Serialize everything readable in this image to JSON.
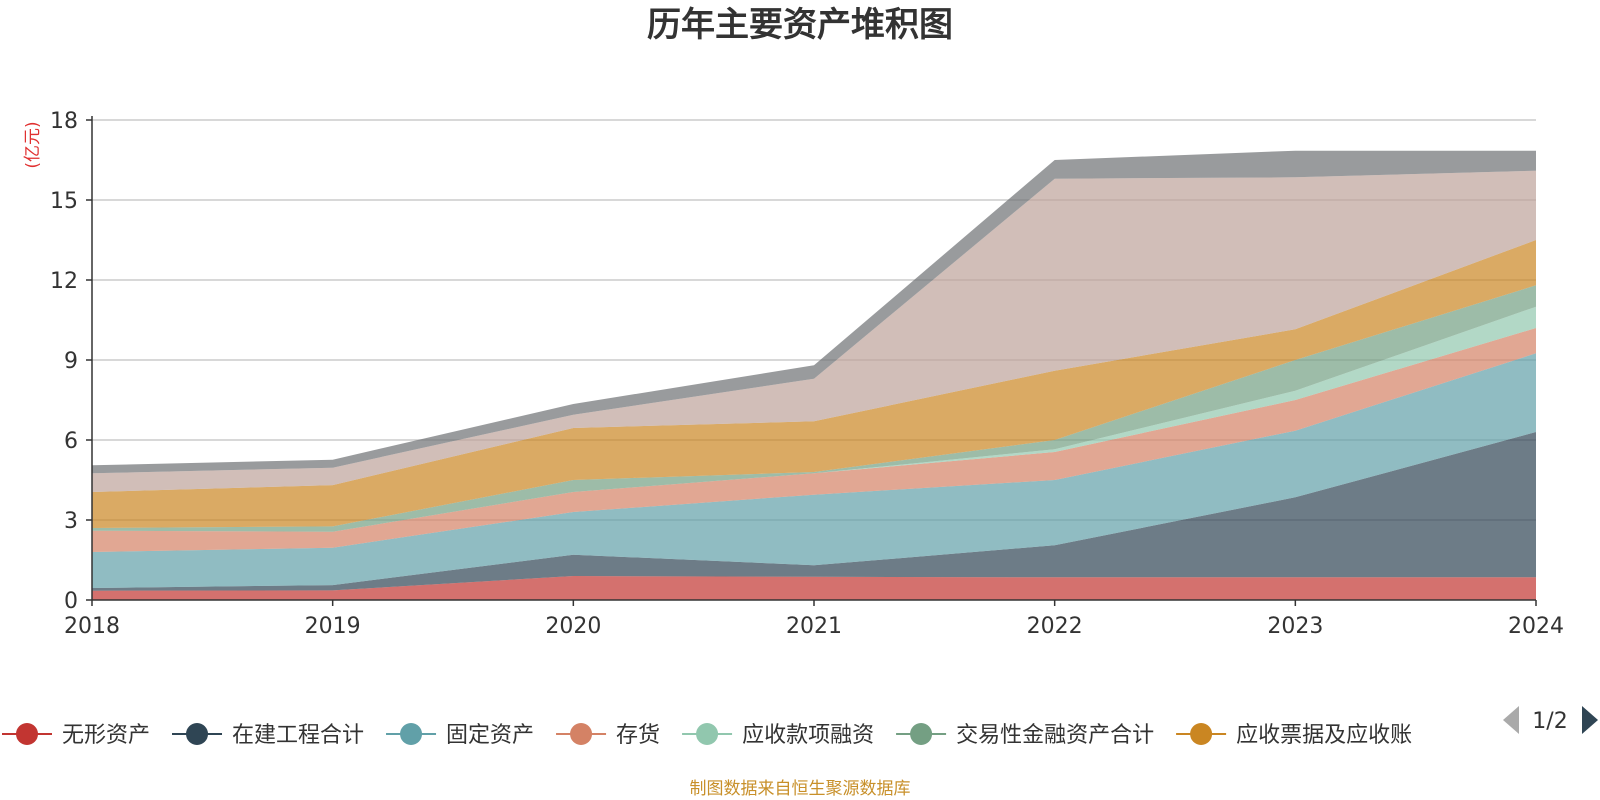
{
  "chart_data": {
    "type": "area",
    "stacked": true,
    "title": "历年主要资产堆积图",
    "unit_label": "(亿元)",
    "x": [
      "2018",
      "2019",
      "2020",
      "2021",
      "2022",
      "2023",
      "2024"
    ],
    "ylim": [
      0,
      18
    ],
    "yticks": [
      0,
      3,
      6,
      9,
      12,
      15,
      18
    ],
    "grid": true,
    "legend_position": "bottom",
    "series": [
      {
        "name": "无形资产",
        "color": "#c23531",
        "values": [
          0.35,
          0.36,
          0.9,
          0.87,
          0.85,
          0.85,
          0.85
        ]
      },
      {
        "name": "在建工程合计",
        "color": "#2f4554",
        "values": [
          0.1,
          0.2,
          0.8,
          0.43,
          1.2,
          3.0,
          5.45
        ]
      },
      {
        "name": "固定资产",
        "color": "#61a0a8",
        "values": [
          1.35,
          1.4,
          1.6,
          2.65,
          2.45,
          2.5,
          2.95
        ]
      },
      {
        "name": "存货",
        "color": "#d48265",
        "values": [
          0.8,
          0.6,
          0.75,
          0.8,
          1.05,
          1.15,
          0.95
        ]
      },
      {
        "name": "应收款项融资",
        "color": "#91c7ae",
        "values": [
          0.0,
          0.0,
          0.0,
          0.0,
          0.1,
          0.35,
          0.8
        ]
      },
      {
        "name": "交易性金融资产合计",
        "color": "#749f83",
        "values": [
          0.1,
          0.2,
          0.45,
          0.05,
          0.35,
          1.15,
          0.8
        ]
      },
      {
        "name": "应收票据及应收账",
        "color": "#ca8622",
        "values": [
          1.35,
          1.55,
          1.95,
          1.9,
          2.6,
          1.15,
          1.7
        ]
      },
      {
        "name": "",
        "color": "#bda29a",
        "values": [
          0.7,
          0.65,
          0.5,
          1.6,
          7.2,
          5.7,
          2.6
        ]
      },
      {
        "name": "",
        "color": "#6e7074",
        "values": [
          0.3,
          0.3,
          0.4,
          0.5,
          0.7,
          1.0,
          0.75
        ]
      }
    ]
  },
  "legend": {
    "page_indicator": "1/2"
  },
  "source_text": "制图数据来自恒生聚源数据库"
}
